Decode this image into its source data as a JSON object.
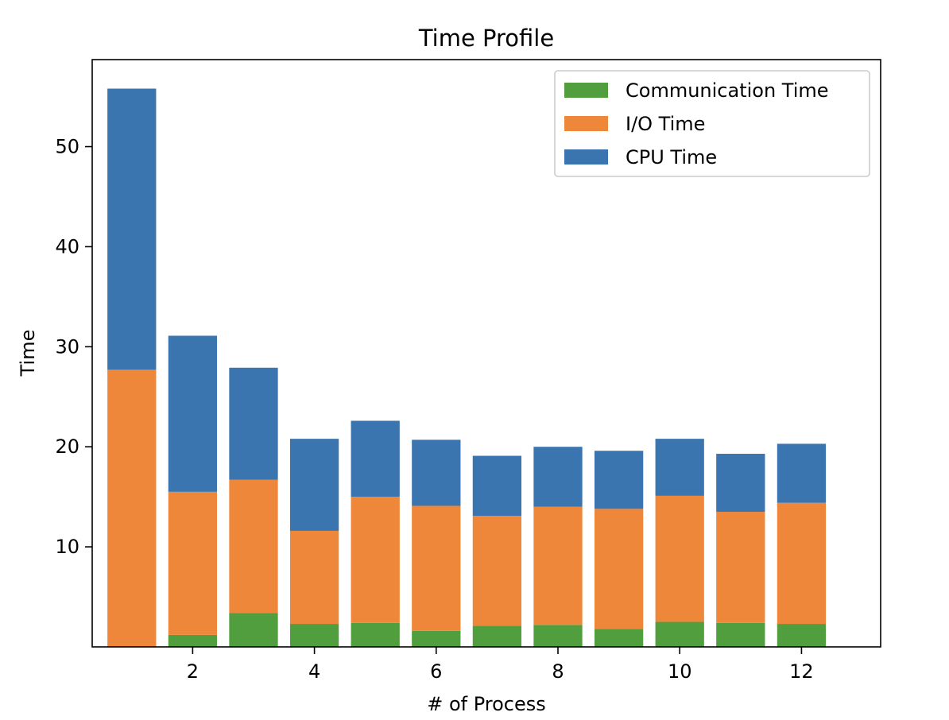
{
  "chart_data": {
    "type": "bar",
    "stacked": true,
    "title": "Time Profile",
    "xlabel": "# of Process",
    "ylabel": "Time",
    "x": [
      1,
      2,
      3,
      4,
      5,
      6,
      7,
      8,
      9,
      10,
      11,
      12
    ],
    "xticks": [
      2,
      4,
      6,
      8,
      10,
      12
    ],
    "yticks": [
      10,
      20,
      30,
      40,
      50
    ],
    "xlim": [
      0.35,
      13.3
    ],
    "ylim": [
      0,
      58.7
    ],
    "grid": false,
    "legend_position": "top-right",
    "series": [
      {
        "name": "Communication Time",
        "color": "#509e3e",
        "values": [
          0,
          1.2,
          3.4,
          2.3,
          2.4,
          1.6,
          2.1,
          2.2,
          1.8,
          2.5,
          2.4,
          2.3
        ]
      },
      {
        "name": "I/O Time",
        "color": "#ee8739",
        "values": [
          27.7,
          14.3,
          13.3,
          9.3,
          12.6,
          12.5,
          11.0,
          11.8,
          12.0,
          12.6,
          11.1,
          12.1
        ]
      },
      {
        "name": "CPU Time",
        "color": "#3b75af",
        "values": [
          28.1,
          15.6,
          11.2,
          9.2,
          7.6,
          6.6,
          6.0,
          6.0,
          5.8,
          5.7,
          5.8,
          5.9
        ]
      }
    ],
    "legend_order": [
      "Communication Time",
      "I/O Time",
      "CPU Time"
    ]
  }
}
